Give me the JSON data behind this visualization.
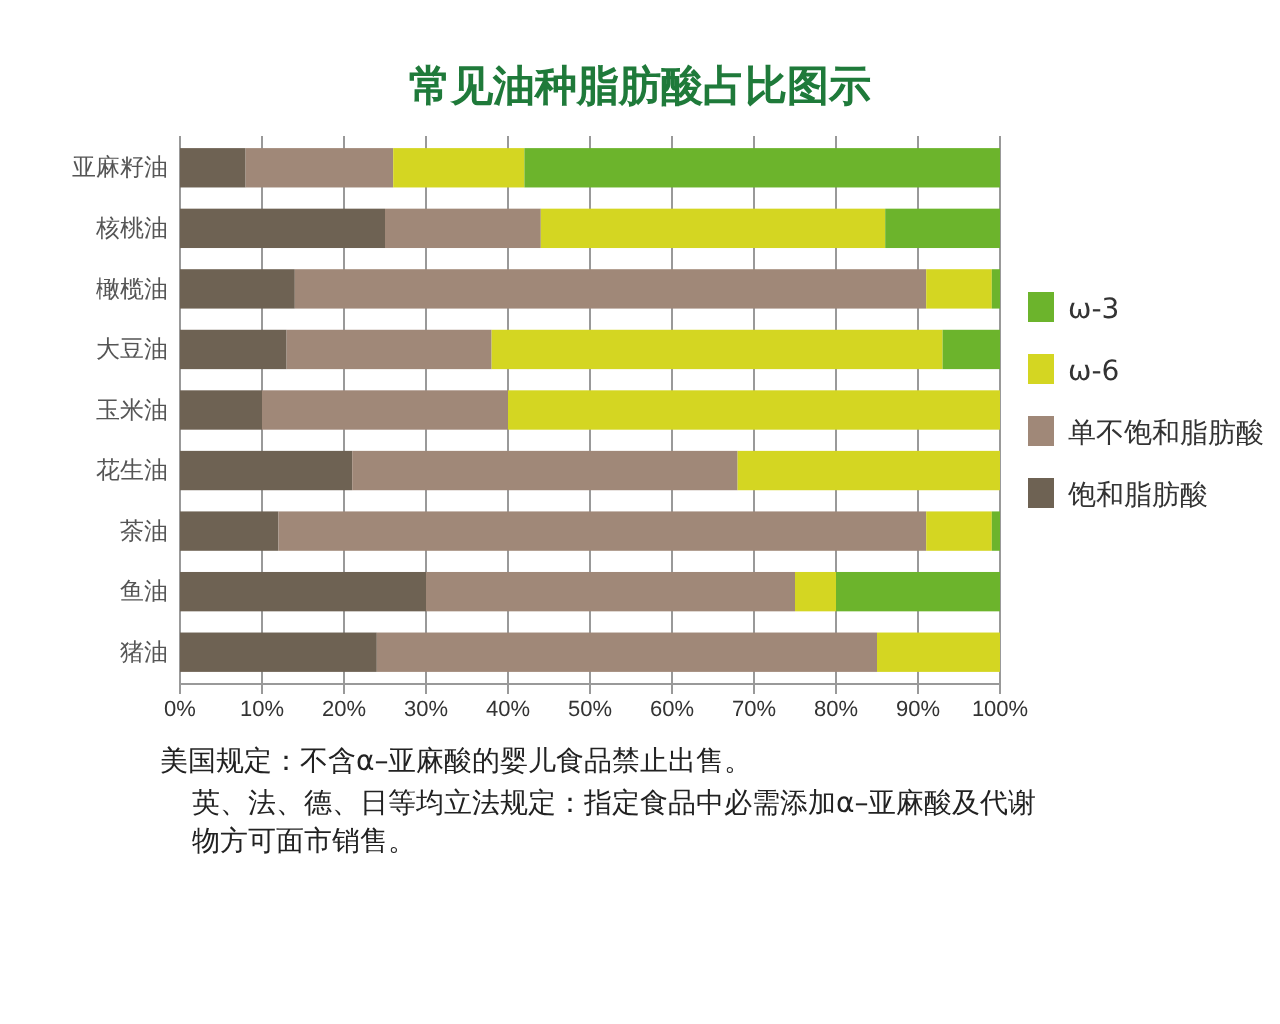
{
  "chart_data": {
    "type": "bar",
    "title": "常见油种脂肪酸占比图示",
    "orientation": "horizontal",
    "stacked": true,
    "categories": [
      "亚麻籽油",
      "核桃油",
      "橄榄油",
      "大豆油",
      "玉米油",
      "花生油",
      "茶油",
      "鱼油",
      "猪油"
    ],
    "series": [
      {
        "name": "饱和脂肪酸",
        "color": "#6e6253",
        "values": [
          8,
          25,
          14,
          13,
          10,
          21,
          12,
          30,
          24
        ]
      },
      {
        "name": "单不饱和脂肪酸",
        "color": "#a08878",
        "values": [
          18,
          19,
          77,
          25,
          30,
          47,
          79,
          45,
          61
        ]
      },
      {
        "name": "ω-6",
        "color": "#d4d622",
        "values": [
          16,
          42,
          8,
          55,
          60,
          32,
          8,
          5,
          15
        ]
      },
      {
        "name": "ω-3",
        "color": "#6cb42c",
        "values": [
          58,
          14,
          1,
          7,
          0,
          0,
          1,
          20,
          0
        ]
      }
    ],
    "xlim": [
      0,
      100
    ],
    "xticks": [
      {
        "value": 0,
        "label": "0%"
      },
      {
        "value": 10,
        "label": "10%"
      },
      {
        "value": 20,
        "label": "20%"
      },
      {
        "value": 30,
        "label": "30%"
      },
      {
        "value": 40,
        "label": "40%"
      },
      {
        "value": 50,
        "label": "50%"
      },
      {
        "value": 60,
        "label": "60%"
      },
      {
        "value": 70,
        "label": "70%"
      },
      {
        "value": 80,
        "label": "80%"
      },
      {
        "value": 90,
        "label": "90%"
      },
      {
        "value": 100,
        "label": "100%"
      }
    ],
    "grid": "x",
    "legend": "right",
    "annotations": [
      "美国规定：不含α–亚麻酸的婴儿食品禁止出售。",
      "英、法、德、日等均立法规定：指定食品中必需添加α–亚麻酸及代谢物方可面市销售。"
    ]
  }
}
